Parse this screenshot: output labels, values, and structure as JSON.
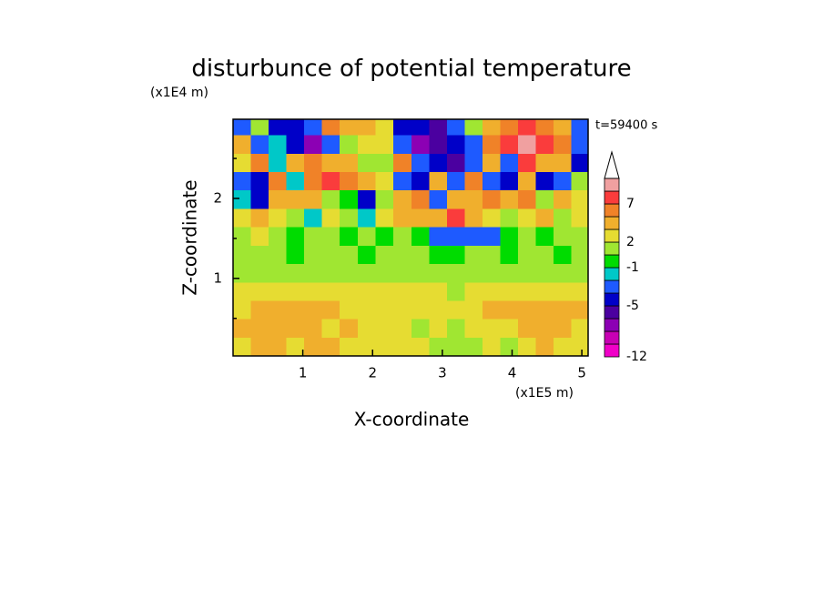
{
  "chart_data": {
    "type": "contour",
    "title": "disturbunce of potential temperature",
    "y_unit": "(x1E4 m)",
    "x_unit": "(x1E5 m)",
    "annotation": "t=59400 s",
    "x_label": "X-coordinate",
    "y_label": "Z-coordinate",
    "xlim": [
      0,
      5.09
    ],
    "ylim": [
      0.03,
      2.99
    ],
    "xticks": [
      1,
      2,
      3,
      4,
      5
    ],
    "yticks": [
      1,
      2
    ],
    "yminorticks": [
      0.5,
      1.5,
      2.5
    ],
    "x": [
      0.13,
      0.38,
      0.64,
      0.89,
      1.15,
      1.4,
      1.66,
      1.92,
      2.17,
      2.43,
      2.68,
      2.94,
      3.19,
      3.45,
      3.7,
      3.96,
      4.21,
      4.47,
      4.72,
      4.98
    ],
    "z": [
      0.15,
      0.38,
      0.61,
      0.84,
      1.07,
      1.3,
      1.53,
      1.76,
      1.99,
      2.22,
      2.45,
      2.68,
      2.91
    ],
    "values": [
      [
        2.5,
        3.5,
        3.5,
        2.5,
        3.5,
        3.5,
        2.5,
        2.5,
        2.5,
        2.5,
        2.5,
        0.5,
        1,
        0.5,
        2.5,
        1,
        2.5,
        3.5,
        2.5,
        2.5
      ],
      [
        3.5,
        3.5,
        4,
        3.5,
        3.5,
        2.5,
        3.5,
        2.5,
        2.5,
        2.5,
        1,
        2.5,
        1,
        2.5,
        2.5,
        2.5,
        3.5,
        3.5,
        3.5,
        2.5
      ],
      [
        2.5,
        3.5,
        3.5,
        4,
        3.5,
        3.5,
        2.5,
        2.5,
        2.5,
        2.5,
        2.5,
        2.5,
        2.5,
        2.5,
        3.5,
        3.5,
        3.5,
        4,
        3.5,
        3.5
      ],
      [
        2.5,
        2.5,
        2.5,
        2.5,
        2.5,
        2.5,
        2.5,
        2.5,
        2.5,
        2.5,
        2.5,
        2.5,
        1,
        2.5,
        2.5,
        2.5,
        2.5,
        2.5,
        2.5,
        2.5
      ],
      [
        1,
        1,
        1,
        1,
        1,
        1,
        0.5,
        1,
        1,
        1,
        1,
        1,
        1,
        1,
        1,
        1,
        1,
        1,
        1,
        1
      ],
      [
        1,
        1,
        1,
        -0.5,
        1,
        1,
        1,
        -0.5,
        1,
        1,
        1,
        -0.5,
        -0.5,
        1,
        1,
        -0.5,
        1,
        1,
        -0.5,
        1
      ],
      [
        1,
        2.5,
        1,
        -0.5,
        1,
        1,
        -0.5,
        1,
        -0.5,
        1,
        -0.5,
        -2.5,
        -2.5,
        -2.5,
        -2.5,
        -0.5,
        1,
        -0.5,
        1,
        1
      ],
      [
        2.5,
        3.5,
        2.5,
        1,
        -1.5,
        2.5,
        1,
        -1.5,
        2.5,
        3.5,
        4,
        3.5,
        7.5,
        4,
        2.5,
        1,
        2.5,
        3.5,
        1,
        2.5
      ],
      [
        -1.5,
        -4,
        3.5,
        4,
        3.5,
        1,
        -0.5,
        -4,
        1,
        3.5,
        5.5,
        -2.5,
        4,
        3.5,
        5.5,
        3.5,
        5.5,
        1,
        3.5,
        2.5
      ],
      [
        -2.5,
        -4,
        5.5,
        -1.5,
        5.5,
        7.5,
        5.5,
        3.5,
        2.5,
        -2.5,
        -4,
        3.5,
        -2.5,
        5.5,
        -2.5,
        -4,
        3.5,
        -4,
        -2.5,
        1
      ],
      [
        2.5,
        5.5,
        -1.5,
        3.5,
        5.5,
        3.5,
        4,
        1,
        1,
        5.5,
        -2.5,
        -4,
        -5.5,
        -2.5,
        3.5,
        -2.5,
        7.5,
        3.5,
        4,
        -4
      ],
      [
        3.5,
        -2.5,
        -1.5,
        -4,
        -7,
        -2.5,
        1,
        2.5,
        2.5,
        -2.5,
        -7,
        -5.5,
        -4,
        -2.5,
        5.5,
        7.5,
        9.5,
        7.5,
        5.5,
        -2.5
      ],
      [
        -2.5,
        1,
        -4,
        -4,
        -2.5,
        5.5,
        4,
        3.5,
        2.5,
        -4,
        -4,
        -5.5,
        -2.5,
        1,
        4,
        5.5,
        7.5,
        5.5,
        4,
        -2.5
      ]
    ],
    "levels": [
      -12,
      -10,
      -8,
      -6,
      -5,
      -3,
      -2,
      -1,
      0,
      2,
      3,
      5,
      7,
      9,
      12
    ],
    "colors": [
      "#f000c8",
      "#c800b4",
      "#8c00b4",
      "#4b00a0",
      "#0000c8",
      "#1e5aff",
      "#00c8c8",
      "#00dc00",
      "#a0e632",
      "#e6dc32",
      "#f0af2d",
      "#f08228",
      "#fa3c3c",
      "#f0a0a0",
      "#ffffff"
    ],
    "colorbar_ticks": [
      -12,
      -5,
      -1,
      2,
      7
    ]
  }
}
